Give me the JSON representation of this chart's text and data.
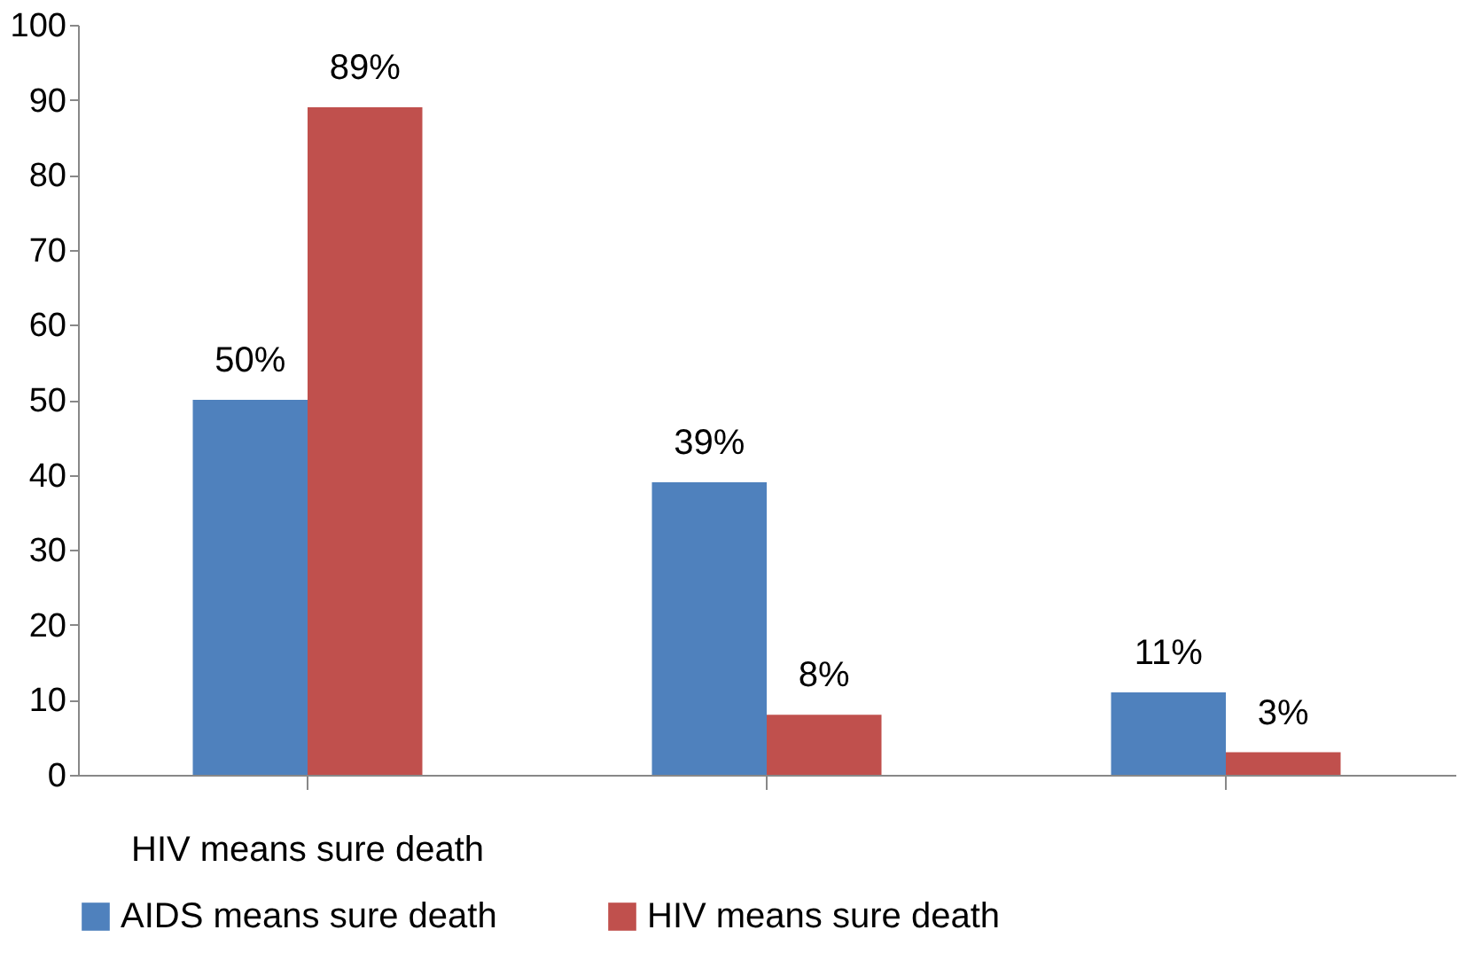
{
  "chart_data": {
    "type": "bar",
    "categories": [
      "HIV means sure death",
      null,
      null
    ],
    "series": [
      {
        "name": "AIDS means sure death",
        "color": "#4f81bd",
        "values": [
          50,
          39,
          11
        ],
        "value_labels": [
          "50%",
          "39%",
          "11%"
        ]
      },
      {
        "name": "HIV means sure death",
        "color": "#c0504d",
        "values": [
          89,
          8,
          3
        ],
        "value_labels": [
          "89%",
          "8%",
          "3%"
        ]
      }
    ],
    "ylim": [
      0,
      100
    ],
    "yticks": [
      0,
      10,
      20,
      30,
      40,
      50,
      60,
      70,
      80,
      90,
      100
    ],
    "grid": false,
    "legend": "bottom"
  }
}
